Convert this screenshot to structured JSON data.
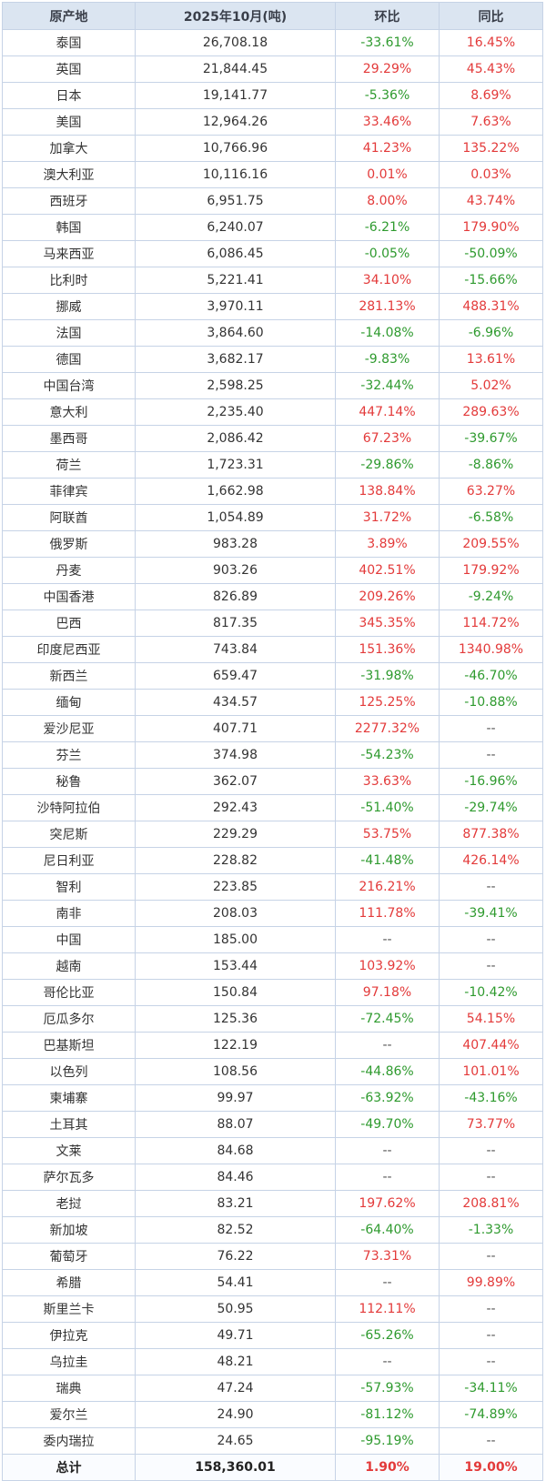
{
  "table": {
    "headers": [
      "原产地",
      "2025年10月(吨)",
      "环比",
      "同比"
    ],
    "rows": [
      [
        "泰国",
        "26,708.18",
        "-33.61%",
        "16.45%"
      ],
      [
        "英国",
        "21,844.45",
        "29.29%",
        "45.43%"
      ],
      [
        "日本",
        "19,141.77",
        "-5.36%",
        "8.69%"
      ],
      [
        "美国",
        "12,964.26",
        "33.46%",
        "7.63%"
      ],
      [
        "加拿大",
        "10,766.96",
        "41.23%",
        "135.22%"
      ],
      [
        "澳大利亚",
        "10,116.16",
        "0.01%",
        "0.03%"
      ],
      [
        "西班牙",
        "6,951.75",
        "8.00%",
        "43.74%"
      ],
      [
        "韩国",
        "6,240.07",
        "-6.21%",
        "179.90%"
      ],
      [
        "马来西亚",
        "6,086.45",
        "-0.05%",
        "-50.09%"
      ],
      [
        "比利时",
        "5,221.41",
        "34.10%",
        "-15.66%"
      ],
      [
        "挪威",
        "3,970.11",
        "281.13%",
        "488.31%"
      ],
      [
        "法国",
        "3,864.60",
        "-14.08%",
        "-6.96%"
      ],
      [
        "德国",
        "3,682.17",
        "-9.83%",
        "13.61%"
      ],
      [
        "中国台湾",
        "2,598.25",
        "-32.44%",
        "5.02%"
      ],
      [
        "意大利",
        "2,235.40",
        "447.14%",
        "289.63%"
      ],
      [
        "墨西哥",
        "2,086.42",
        "67.23%",
        "-39.67%"
      ],
      [
        "荷兰",
        "1,723.31",
        "-29.86%",
        "-8.86%"
      ],
      [
        "菲律宾",
        "1,662.98",
        "138.84%",
        "63.27%"
      ],
      [
        "阿联酋",
        "1,054.89",
        "31.72%",
        "-6.58%"
      ],
      [
        "俄罗斯",
        "983.28",
        "3.89%",
        "209.55%"
      ],
      [
        "丹麦",
        "903.26",
        "402.51%",
        "179.92%"
      ],
      [
        "中国香港",
        "826.89",
        "209.26%",
        "-9.24%"
      ],
      [
        "巴西",
        "817.35",
        "345.35%",
        "114.72%"
      ],
      [
        "印度尼西亚",
        "743.84",
        "151.36%",
        "1340.98%"
      ],
      [
        "新西兰",
        "659.47",
        "-31.98%",
        "-46.70%"
      ],
      [
        "缅甸",
        "434.57",
        "125.25%",
        "-10.88%"
      ],
      [
        "爱沙尼亚",
        "407.71",
        "2277.32%",
        "--"
      ],
      [
        "芬兰",
        "374.98",
        "-54.23%",
        "--"
      ],
      [
        "秘鲁",
        "362.07",
        "33.63%",
        "-16.96%"
      ],
      [
        "沙特阿拉伯",
        "292.43",
        "-51.40%",
        "-29.74%"
      ],
      [
        "突尼斯",
        "229.29",
        "53.75%",
        "877.38%"
      ],
      [
        "尼日利亚",
        "228.82",
        "-41.48%",
        "426.14%"
      ],
      [
        "智利",
        "223.85",
        "216.21%",
        "--"
      ],
      [
        "南非",
        "208.03",
        "111.78%",
        "-39.41%"
      ],
      [
        "中国",
        "185.00",
        "--",
        "--"
      ],
      [
        "越南",
        "153.44",
        "103.92%",
        "--"
      ],
      [
        "哥伦比亚",
        "150.84",
        "97.18%",
        "-10.42%"
      ],
      [
        "厄瓜多尔",
        "125.36",
        "-72.45%",
        "54.15%"
      ],
      [
        "巴基斯坦",
        "122.19",
        "--",
        "407.44%"
      ],
      [
        "以色列",
        "108.56",
        "-44.86%",
        "101.01%"
      ],
      [
        "柬埔寨",
        "99.97",
        "-63.92%",
        "-43.16%"
      ],
      [
        "土耳其",
        "88.07",
        "-49.70%",
        "73.77%"
      ],
      [
        "文莱",
        "84.68",
        "--",
        "--"
      ],
      [
        "萨尔瓦多",
        "84.46",
        "--",
        "--"
      ],
      [
        "老挝",
        "83.21",
        "197.62%",
        "208.81%"
      ],
      [
        "新加坡",
        "82.52",
        "-64.40%",
        "-1.33%"
      ],
      [
        "葡萄牙",
        "76.22",
        "73.31%",
        "--"
      ],
      [
        "希腊",
        "54.41",
        "--",
        "99.89%"
      ],
      [
        "斯里兰卡",
        "50.95",
        "112.11%",
        "--"
      ],
      [
        "伊拉克",
        "49.71",
        "-65.26%",
        "--"
      ],
      [
        "乌拉圭",
        "48.21",
        "--",
        "--"
      ],
      [
        "瑞典",
        "47.24",
        "-57.93%",
        "-34.11%"
      ],
      [
        "爱尔兰",
        "24.90",
        "-81.12%",
        "-74.89%"
      ],
      [
        "委内瑞拉",
        "24.65",
        "-95.19%",
        "--"
      ]
    ],
    "total": [
      "总计",
      "158,360.01",
      "1.90%",
      "19.00%"
    ]
  },
  "colors": {
    "positive": "#e33a3a",
    "negative": "#2e9a2e",
    "header_bg": "#dbe5f1",
    "border": "#c6d3e6"
  }
}
